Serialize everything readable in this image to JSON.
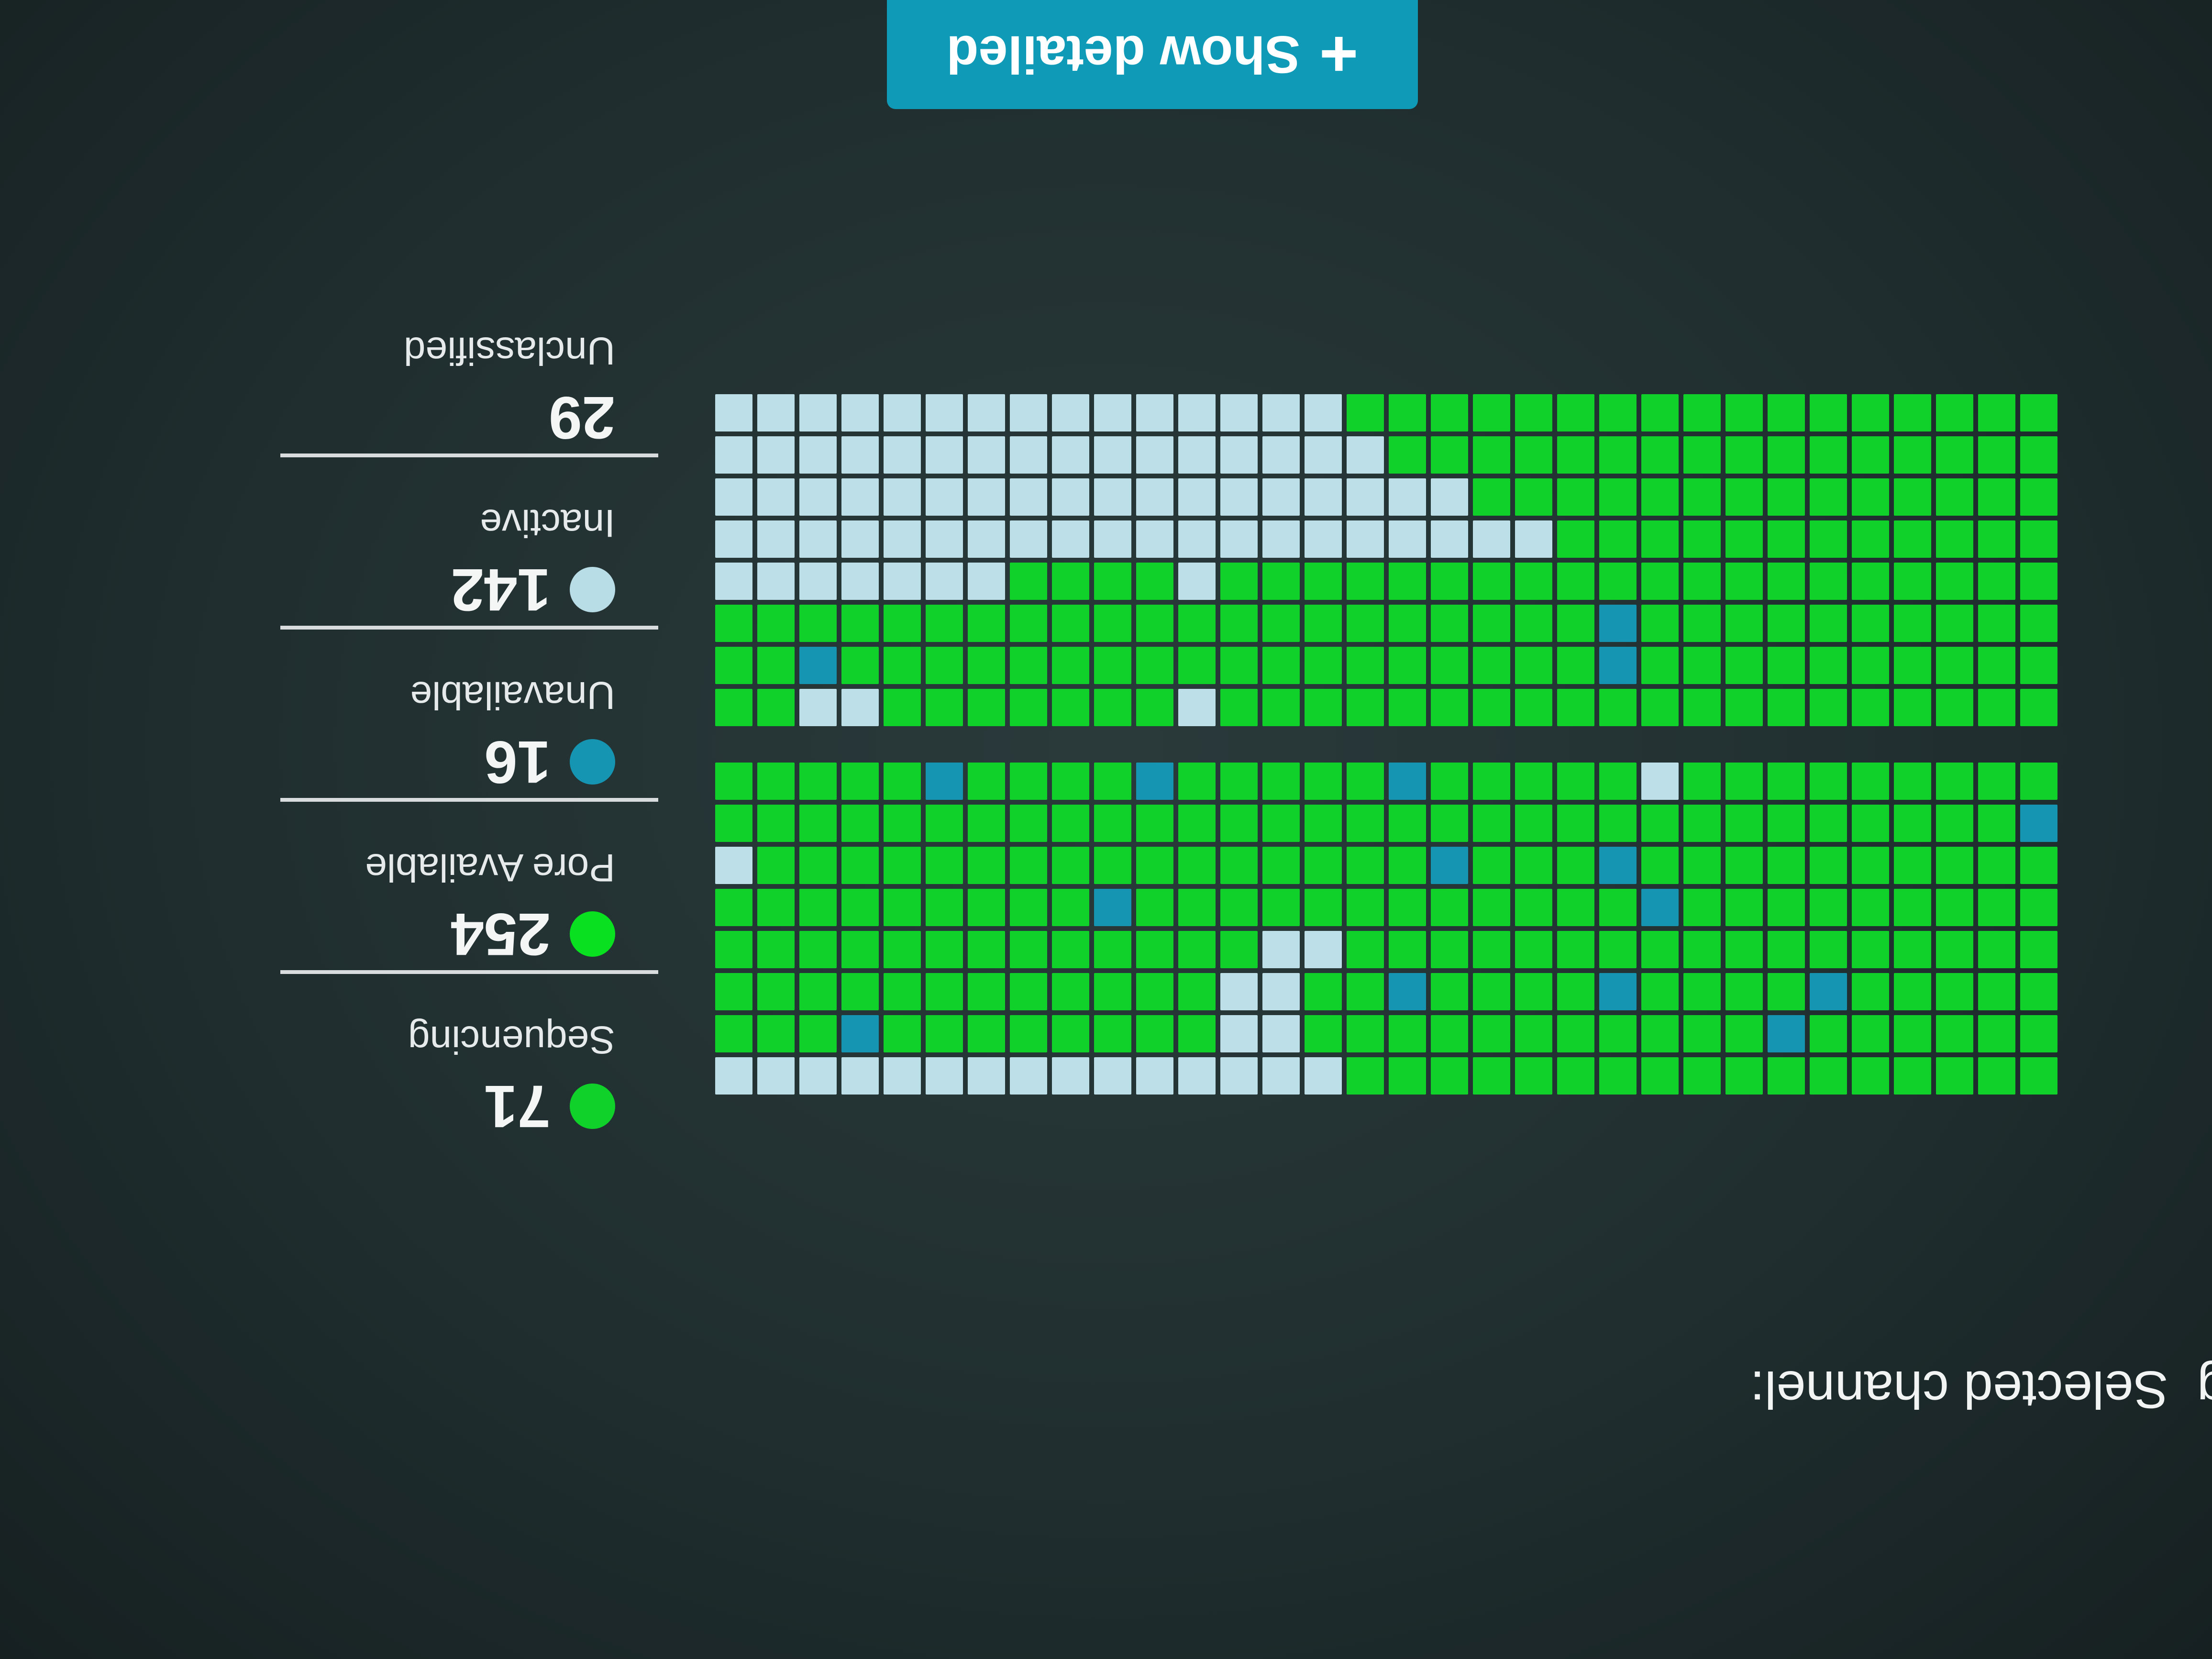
{
  "header": {
    "prefix": "g",
    "title": "Selected channel:"
  },
  "legend": [
    {
      "count": "71",
      "label": "Sequencing",
      "color": "#10d02a"
    },
    {
      "count": "254",
      "label": "Pore Available",
      "color": "#08e020"
    },
    {
      "count": "16",
      "label": "Unavailable",
      "color": "#1595b2"
    },
    {
      "count": "142",
      "label": "Inactive",
      "color": "#b8dde6"
    },
    {
      "count": "29",
      "label": "Unclassified",
      "color": null
    }
  ],
  "colors": {
    "G": "#10d02a",
    "B": "#1595b2",
    "L": "#bddfe8"
  },
  "grid_top": [
    "GGGGGGGGGGGGGGGGGLLLLLLLLLLLLLLL",
    "GGGGGGBGGGGGGGGGGGLLGGGGGGGGBGGG",
    "GGGGGBGGGGBGGGGBGGLLGGGGGGGGGGGG",
    "GGGGGGGGGGGGGGGGGLLGGGGGGGGGGGGG",
    "GGGGGGGGGBGGGGGGGGGGGGBGGGGGGGGG",
    "GGGGGGGGGGBGGGBGGGGGGGGGGGGGGGGL",
    "BGGGGGGGGGGGGGGGGGGGGGGGGGGGGGGG",
    "GGGGGGGGGLGGGGGBGGGGGBGGGGBGGGGG"
  ],
  "grid_bottom": [
    "GGGGGGGGGGGGGGGGGGGGLGGGGGGGLLGG",
    "GGGGGGGGGGBGGGGGGGGGGGGGGGGGGBGG",
    "GGGGGGGGGGBGGGGGGGGGGGGGGGGGGGGG",
    "GGGGGGGGGGGGGGGGGGGGLGGGGLLLLLLL",
    "GGGGGGGGGGGGLLLLLLLLLLLLLLLLLLLL",
    "GGGGGGGGGGGGGGLLLLLLLLLLLLLLLLLL",
    "GGGGGGGGGGGGGGGGLLLLLLLLLLLLLLLL",
    "GGGGGGGGGGGGGGGGGLLLLLLLLLLLLLLL"
  ],
  "button": {
    "label": "Show detailed",
    "icon": "plus-icon"
  }
}
